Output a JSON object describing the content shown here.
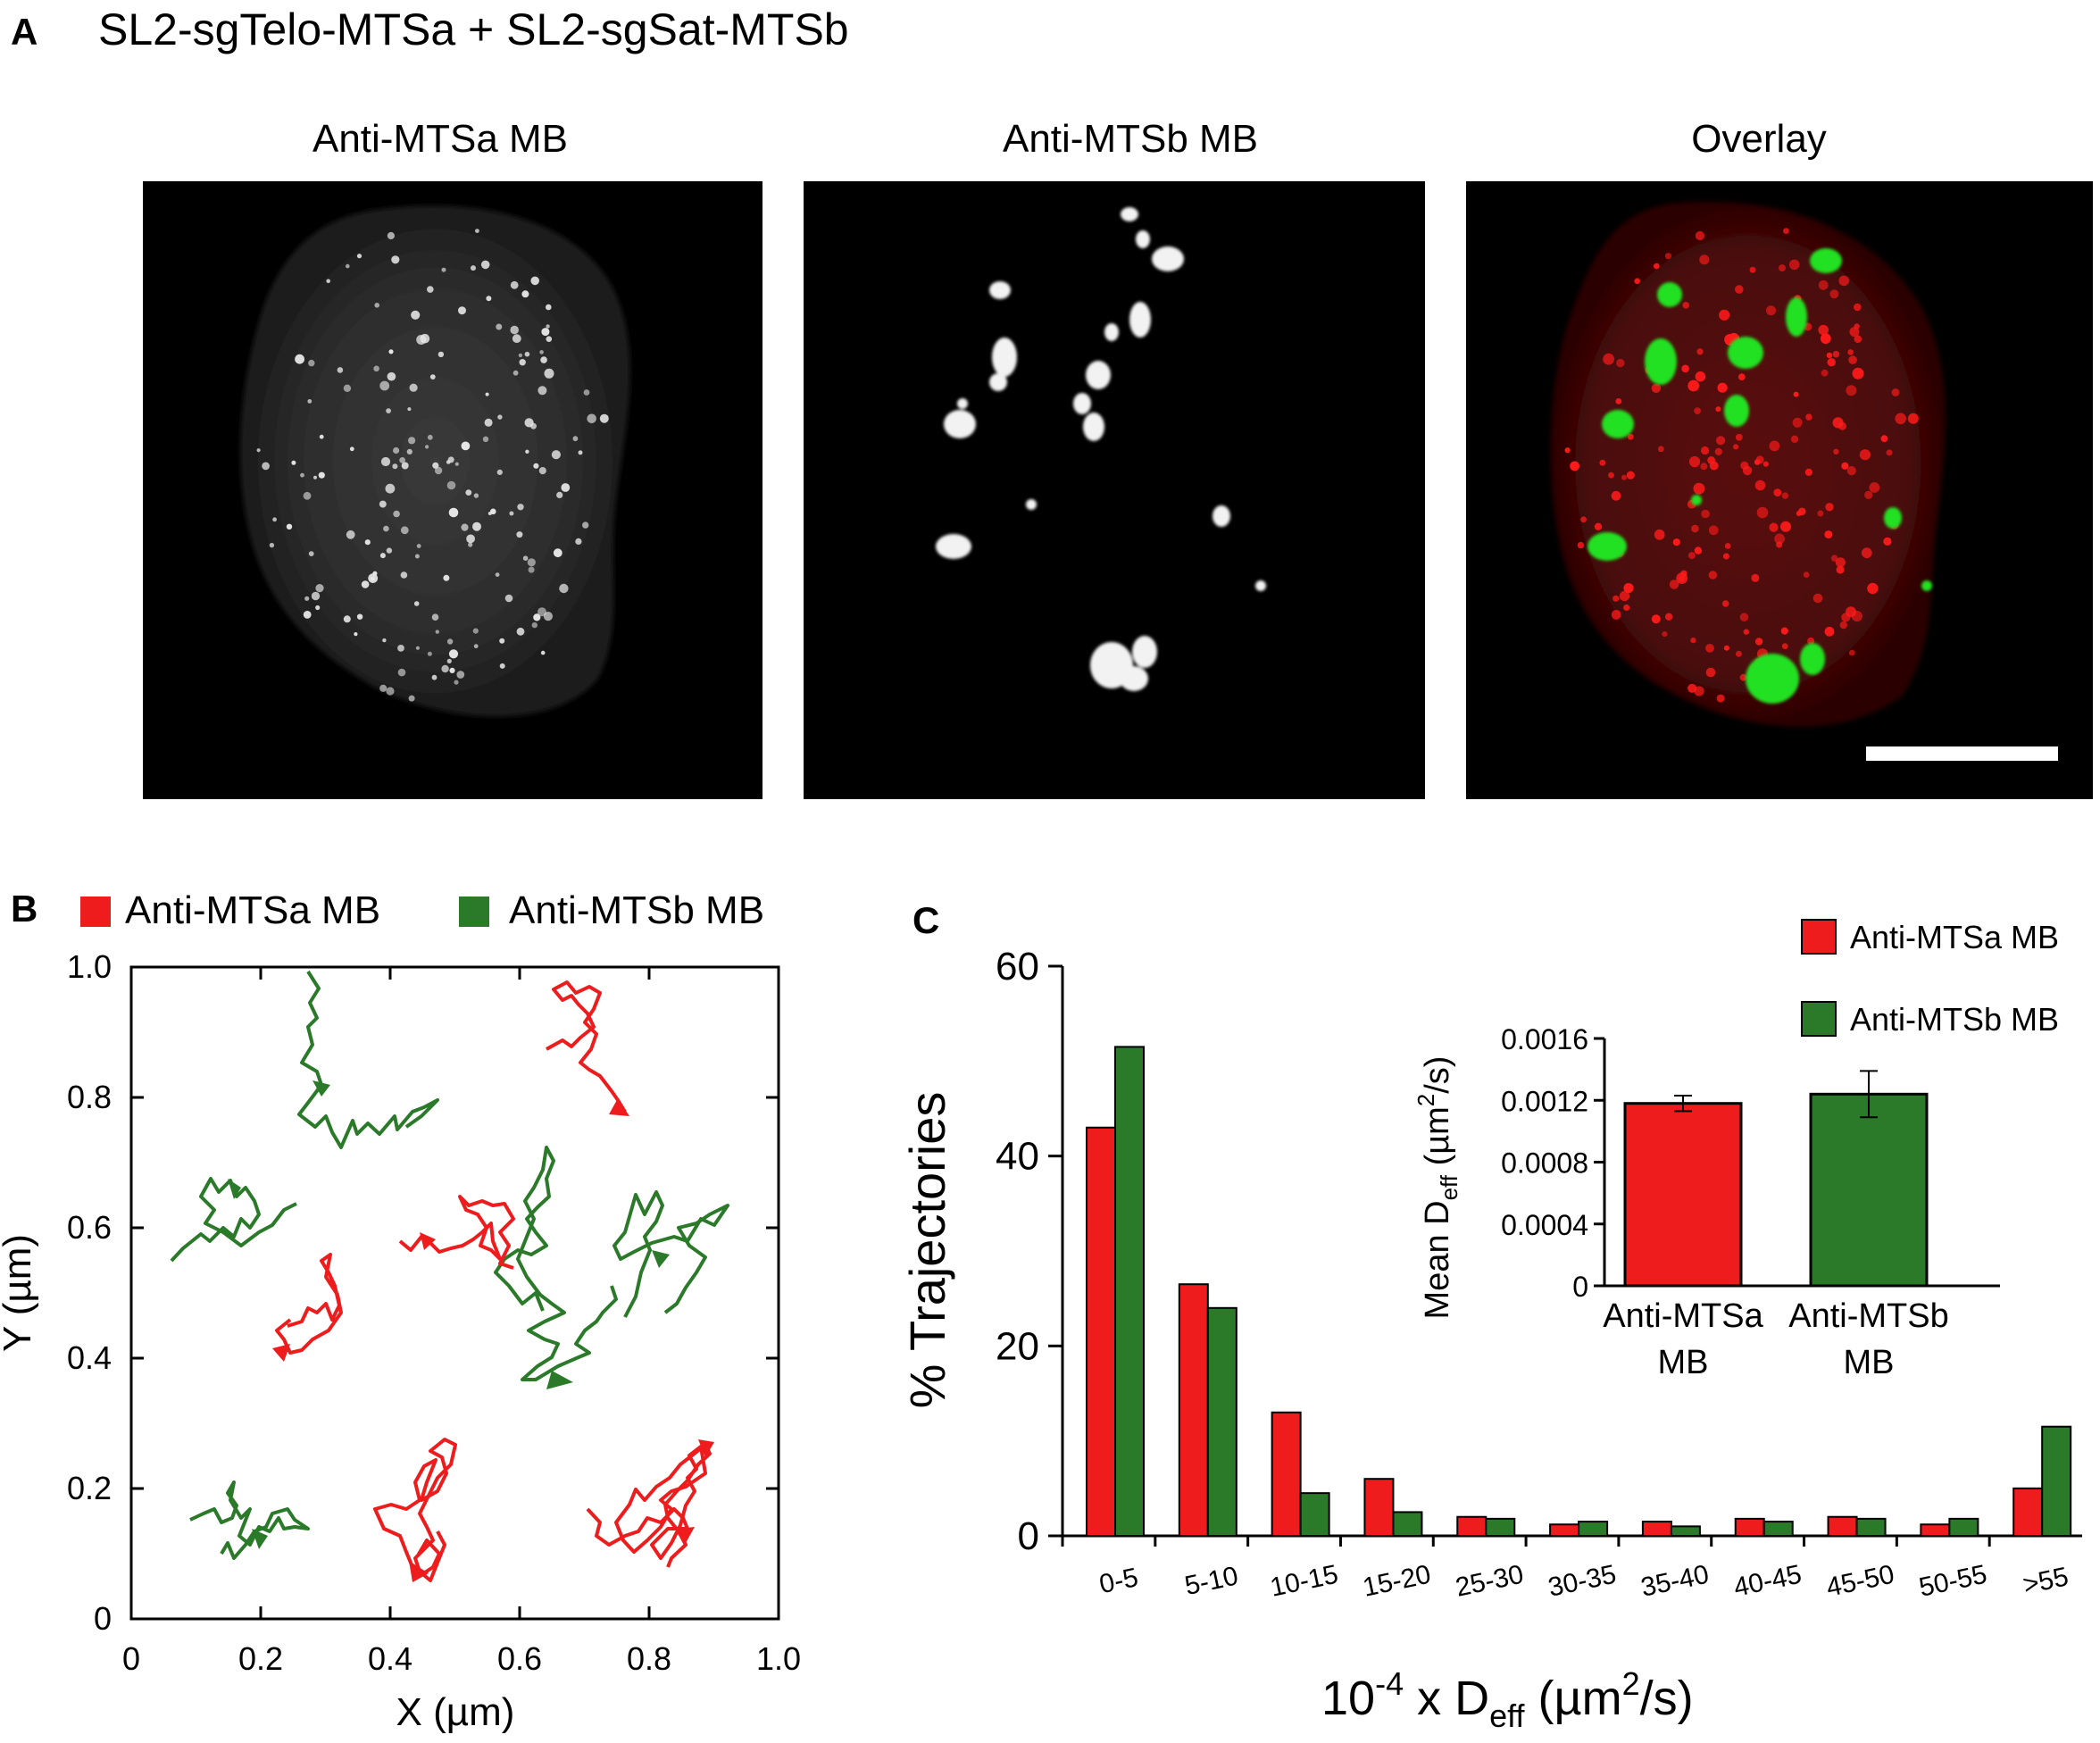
{
  "panel_a": {
    "letter": "A",
    "construct": "SL2-sgTelo-MTSa + SL2-sgSat-MTSb",
    "images": [
      {
        "title": "Anti-MTSa MB"
      },
      {
        "title": "Anti-MTSb  MB"
      },
      {
        "title": "Overlay"
      }
    ]
  },
  "panel_b": {
    "letter": "B",
    "legend": [
      {
        "label": "Anti-MTSa MB",
        "color": "#ee1c1c"
      },
      {
        "label": "Anti-MTSb MB",
        "color": "#2a7a2a"
      }
    ],
    "xlabel": "X (µm)",
    "ylabel": "Y (µm)",
    "xlim": [
      0,
      1.0
    ],
    "ylim": [
      0,
      1.0
    ],
    "xticks": [
      "0",
      "0.2",
      "0.4",
      "0.6",
      "0.8",
      "1.0"
    ],
    "yticks": [
      "0",
      "0.2",
      "0.4",
      "0.6",
      "0.8",
      "1.0"
    ]
  },
  "chart_data": [
    {
      "type": "bar",
      "panel": "C",
      "categories": [
        "0-5",
        "5-10",
        "10-15",
        "15-20",
        "25-30",
        "30-35",
        "35-40",
        "40-45",
        "45-50",
        "50-55",
        ">55"
      ],
      "series": [
        {
          "name": "Anti-MTSa MB",
          "color": "#ee1c1c",
          "values": [
            43,
            26.5,
            13,
            6,
            2,
            1.2,
            1.5,
            1.8,
            2,
            1.2,
            5
          ]
        },
        {
          "name": "Anti-MTSb MB",
          "color": "#2a7a2a",
          "values": [
            51.5,
            24,
            4.5,
            2.5,
            1.8,
            1.5,
            1,
            1.5,
            1.8,
            1.8,
            11.5
          ]
        }
      ],
      "ylabel": "% Trajectories",
      "ylim": [
        0,
        60
      ],
      "yticks": [
        "0",
        "20",
        "40",
        "60"
      ],
      "legend_placement": "top-right"
    },
    {
      "type": "bar",
      "panel": "C-inset",
      "categories": [
        [
          "Anti-MTSa",
          "MB"
        ],
        [
          "Anti-MTSb",
          "MB"
        ]
      ],
      "values": [
        0.00118,
        0.00124
      ],
      "errors": [
        5e-05,
        0.00015
      ],
      "colors": [
        "#ee1c1c",
        "#2a7a2a"
      ],
      "ylim": [
        0,
        0.0016
      ],
      "yticks": [
        "0",
        "0.0004",
        "0.0008",
        "0.0012",
        "0.0016"
      ]
    }
  ],
  "panel_c": {
    "letter": "C",
    "xlabel_parts": {
      "pre": "10",
      "exp": "-4",
      "mid": " x D",
      "sub": "eff",
      "post1": " (µm",
      "sup2": "2",
      "post2": "/s)"
    },
    "inset_ylabel_parts": {
      "pre": "Mean D",
      "sub": "eff",
      "post1": " (µm",
      "sup2": "2",
      "post2": "/s)"
    }
  }
}
